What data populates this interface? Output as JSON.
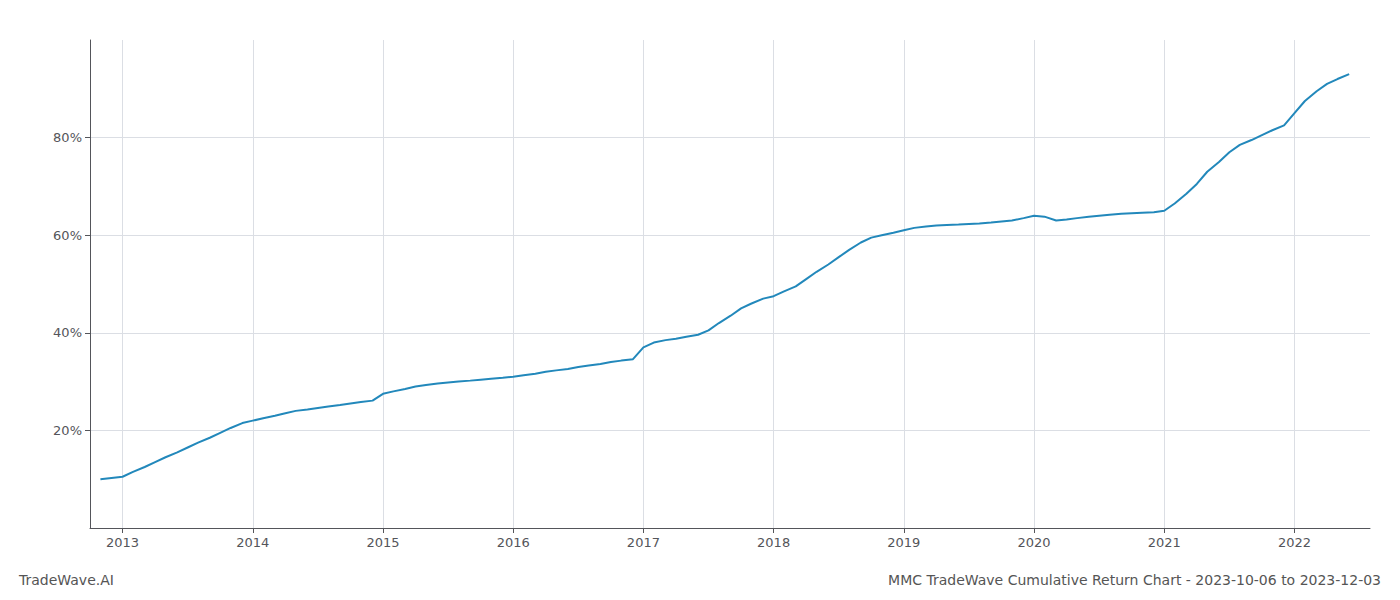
{
  "chart_data": {
    "type": "line",
    "title": "MMC TradeWave Cumulative Return Chart - 2023-10-06 to 2023-12-03",
    "annotations": [
      "TradeWave.AI"
    ],
    "color": "#2288bb",
    "grid": true,
    "x": [
      2012.83,
      2013.0,
      2013.08,
      2013.17,
      2013.25,
      2013.33,
      2013.42,
      2013.5,
      2013.58,
      2013.67,
      2013.75,
      2013.83,
      2013.92,
      2014.0,
      2014.08,
      2014.17,
      2014.25,
      2014.33,
      2014.42,
      2014.5,
      2014.58,
      2014.67,
      2014.75,
      2014.83,
      2014.92,
      2015.0,
      2015.08,
      2015.17,
      2015.25,
      2015.33,
      2015.42,
      2015.5,
      2015.58,
      2015.67,
      2015.75,
      2015.83,
      2015.92,
      2016.0,
      2016.08,
      2016.17,
      2016.25,
      2016.33,
      2016.42,
      2016.5,
      2016.58,
      2016.67,
      2016.75,
      2016.83,
      2016.92,
      2017.0,
      2017.08,
      2017.17,
      2017.25,
      2017.33,
      2017.42,
      2017.5,
      2017.58,
      2017.67,
      2017.75,
      2017.83,
      2017.92,
      2018.0,
      2018.08,
      2018.17,
      2018.25,
      2018.33,
      2018.42,
      2018.5,
      2018.58,
      2018.67,
      2018.75,
      2018.83,
      2018.92,
      2019.0,
      2019.08,
      2019.17,
      2019.25,
      2019.33,
      2019.42,
      2019.5,
      2019.58,
      2019.67,
      2019.75,
      2019.83,
      2019.92,
      2020.0,
      2020.08,
      2020.17,
      2020.25,
      2020.33,
      2020.42,
      2020.5,
      2020.58,
      2020.67,
      2020.75,
      2020.83,
      2020.92,
      2021.0,
      2021.08,
      2021.17,
      2021.25,
      2021.33,
      2021.42,
      2021.5,
      2021.58,
      2021.67,
      2021.75,
      2021.83,
      2021.92,
      2022.0,
      2022.08,
      2022.17,
      2022.25,
      2022.33,
      2022.42
    ],
    "values": [
      10,
      10.5,
      11.5,
      12.5,
      13.5,
      14.5,
      15.5,
      16.5,
      17.5,
      18.5,
      19.5,
      20.5,
      21.5,
      22.0,
      22.5,
      23.0,
      23.5,
      24.0,
      24.3,
      24.6,
      24.9,
      25.2,
      25.5,
      25.8,
      26.1,
      27.5,
      28.0,
      28.5,
      29.0,
      29.3,
      29.6,
      29.8,
      30.0,
      30.2,
      30.4,
      30.6,
      30.8,
      31.0,
      31.3,
      31.6,
      32.0,
      32.3,
      32.6,
      33.0,
      33.3,
      33.6,
      34.0,
      34.3,
      34.6,
      37.0,
      38.0,
      38.5,
      38.8,
      39.2,
      39.6,
      40.5,
      42.0,
      43.5,
      45.0,
      46.0,
      47.0,
      47.5,
      48.5,
      49.5,
      51.0,
      52.5,
      54.0,
      55.5,
      57.0,
      58.5,
      59.5,
      60.0,
      60.5,
      61.0,
      61.5,
      61.8,
      62.0,
      62.1,
      62.2,
      62.3,
      62.4,
      62.6,
      62.8,
      63.0,
      63.5,
      64.0,
      63.8,
      63.0,
      63.2,
      63.5,
      63.8,
      64.0,
      64.2,
      64.4,
      64.5,
      64.6,
      64.7,
      65.0,
      66.5,
      68.5,
      70.5,
      73.0,
      75.0,
      77.0,
      78.5,
      79.5,
      80.5,
      81.5,
      82.5,
      85.0,
      87.5,
      89.5,
      91.0,
      92.0,
      93.0
    ],
    "xlim": [
      2012.75,
      2022.58
    ],
    "xticks": [
      2013,
      2014,
      2015,
      2016,
      2017,
      2018,
      2019,
      2020,
      2021,
      2022
    ],
    "ylim": [
      0,
      100
    ],
    "yticks": [
      {
        "value": 20,
        "label": "20%"
      },
      {
        "value": 40,
        "label": "40%"
      },
      {
        "value": 60,
        "label": "60%"
      },
      {
        "value": 80,
        "label": "80%"
      }
    ]
  }
}
